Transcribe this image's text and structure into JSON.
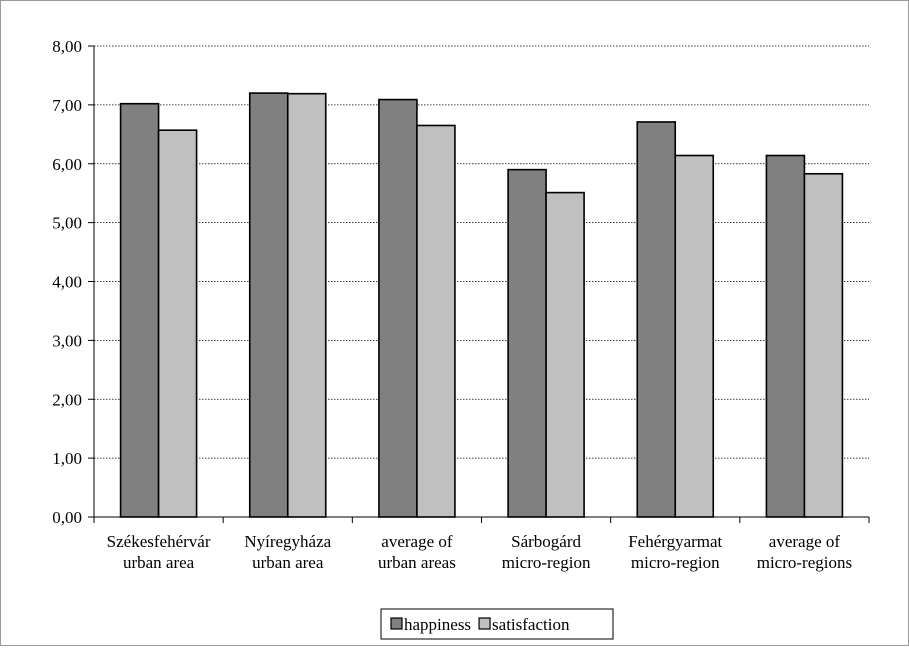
{
  "chart_data": {
    "type": "bar",
    "categories": [
      [
        "Székesfehérvár",
        "urban area"
      ],
      [
        "Nyíregyháza",
        "urban area"
      ],
      [
        "average of",
        "urban areas"
      ],
      [
        "Sárbogárd",
        "micro-region"
      ],
      [
        "Fehérgyarmat",
        "micro-region"
      ],
      [
        "average of",
        "micro-regions"
      ]
    ],
    "series": [
      {
        "name": "happiness",
        "values": [
          7.02,
          7.2,
          7.09,
          5.9,
          6.71,
          6.14
        ],
        "color": "#808080"
      },
      {
        "name": "satisfaction",
        "values": [
          6.57,
          7.19,
          6.65,
          5.51,
          6.14,
          5.83
        ],
        "color": "#c0c0c0"
      }
    ],
    "ylim": [
      0,
      8
    ],
    "yticks": [
      "0,00",
      "1,00",
      "2,00",
      "3,00",
      "4,00",
      "5,00",
      "6,00",
      "7,00",
      "8,00"
    ],
    "grid": "horizontal dotted",
    "legend_position": "bottom",
    "title": "",
    "xlabel": "",
    "ylabel": ""
  }
}
